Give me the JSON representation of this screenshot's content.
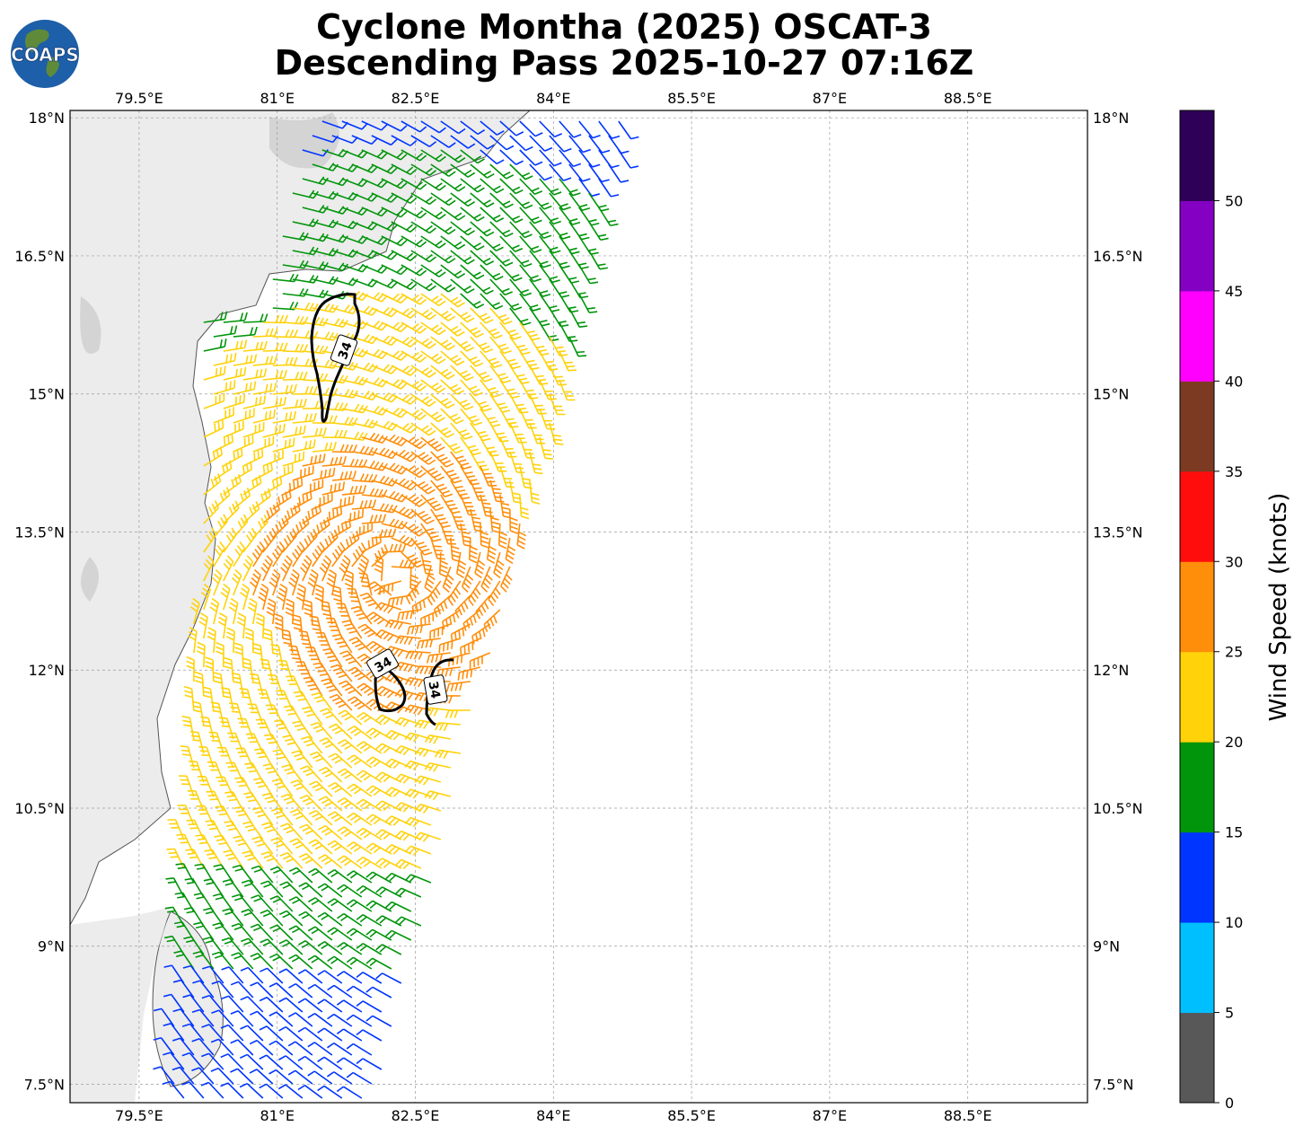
{
  "title": {
    "line1": "Cyclone Montha (2025) OSCAT-3",
    "line2": "Descending Pass 2025-10-27 07:16Z"
  },
  "logo": {
    "text": "COAPS",
    "icon": "globe-logo-icon"
  },
  "map": {
    "lon_ticks": [
      "79.5°E",
      "81°E",
      "82.5°E",
      "84°E",
      "85.5°E",
      "87°E",
      "88.5°E"
    ],
    "lat_ticks": [
      "18°N",
      "16.5°N",
      "15°N",
      "13.5°N",
      "12°N",
      "10.5°N",
      "9°N",
      "7.5°N"
    ],
    "lon_values": [
      79.5,
      81,
      82.5,
      84,
      85.5,
      87,
      88.5
    ],
    "lat_values": [
      18,
      16.5,
      15,
      13.5,
      12,
      10.5,
      9,
      7.5
    ],
    "extent": {
      "lon_min": 78.75,
      "lon_max": 89.8,
      "lat_max": 18.08,
      "lat_min": 7.3
    },
    "contour_label": "34"
  },
  "colorbar": {
    "label": "Wind Speed (knots)",
    "ticks": [
      "0",
      "5",
      "10",
      "15",
      "20",
      "25",
      "30",
      "35",
      "40",
      "45",
      "50"
    ],
    "bins": [
      {
        "range": "0-5",
        "color": "#585858"
      },
      {
        "range": "5-10",
        "color": "#00bfff"
      },
      {
        "range": "10-15",
        "color": "#0035ff"
      },
      {
        "range": "15-20",
        "color": "#00950a"
      },
      {
        "range": "20-25",
        "color": "#ffd20a"
      },
      {
        "range": "25-30",
        "color": "#ff8e0a"
      },
      {
        "range": "30-35",
        "color": "#ff0d0d"
      },
      {
        "range": "35-40",
        "color": "#7d3a22"
      },
      {
        "range": "40-45",
        "color": "#ff00ff"
      },
      {
        "range": "45-50",
        "color": "#8400c2"
      },
      {
        "range": "50+",
        "color": "#2e0058"
      }
    ]
  }
}
